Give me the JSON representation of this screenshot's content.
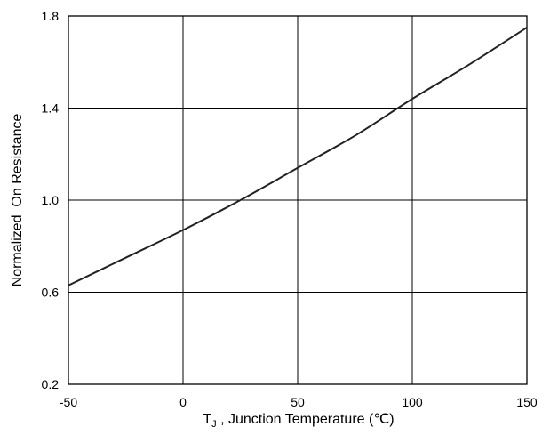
{
  "chart_data": {
    "type": "line",
    "title": "",
    "xlabel_parts": {
      "symbol": "T",
      "subscript": "J",
      "rest": " , Junction Temperature (℃)"
    },
    "ylabel": "Normalized  On Resistance",
    "xlim": [
      -50,
      150
    ],
    "ylim": [
      0.2,
      1.8
    ],
    "xticks": [
      -50,
      0,
      50,
      100,
      150
    ],
    "xtick_labels": [
      "-50",
      "0",
      "50",
      "100",
      "150"
    ],
    "yticks": [
      0.2,
      0.6,
      1.0,
      1.4,
      1.8
    ],
    "ytick_labels": [
      "0.2",
      "0.6",
      "1.0",
      "1.4",
      "1.8"
    ],
    "grid": true,
    "legend": "none",
    "line_color": "#222222",
    "series": [
      {
        "x": [
          -50,
          -25,
          0,
          25,
          50,
          75,
          100,
          125,
          150
        ],
        "y": [
          0.63,
          0.75,
          0.87,
          1.0,
          1.14,
          1.28,
          1.44,
          1.59,
          1.75
        ]
      }
    ]
  }
}
